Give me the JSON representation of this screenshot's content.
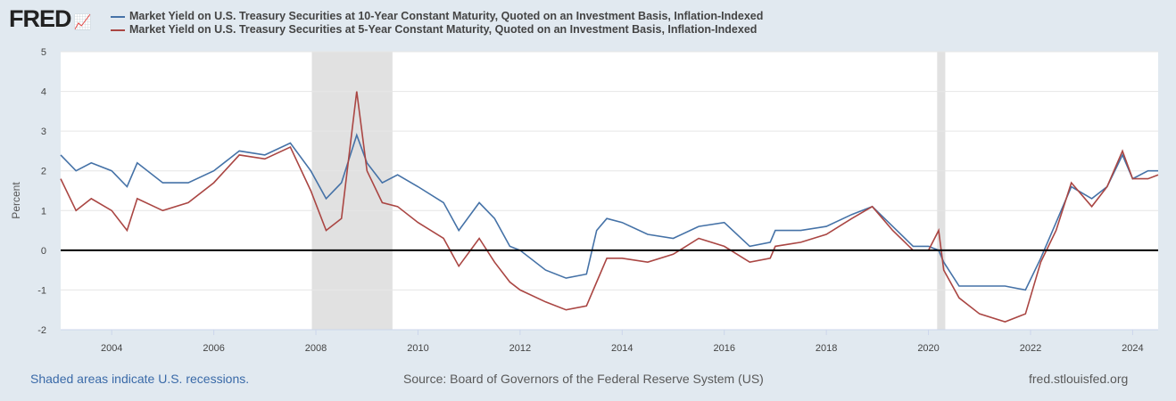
{
  "logo": "FRED",
  "footer": {
    "recession_note": "Shaded areas indicate U.S. recessions.",
    "source": "Source: Board of Governors of the Federal Reserve System (US)",
    "site": "fred.stlouisfed.org"
  },
  "chart_data": {
    "type": "line",
    "ylabel": "Percent",
    "ylim": [
      -2,
      5
    ],
    "xlim": [
      2003.0,
      2024.5
    ],
    "yticks": [
      "5",
      "4",
      "3",
      "2",
      "1",
      "0",
      "-1",
      "-2"
    ],
    "xticks": [
      "2004",
      "2006",
      "2008",
      "2010",
      "2012",
      "2014",
      "2016",
      "2018",
      "2020",
      "2022",
      "2024"
    ],
    "recessions": [
      [
        2007.92,
        2009.5
      ],
      [
        2020.17,
        2020.33
      ]
    ],
    "x": [
      2003.0,
      2003.3,
      2003.6,
      2004.0,
      2004.3,
      2004.5,
      2005.0,
      2005.5,
      2006.0,
      2006.5,
      2007.0,
      2007.5,
      2007.9,
      2008.2,
      2008.5,
      2008.8,
      2009.0,
      2009.3,
      2009.6,
      2010.0,
      2010.5,
      2010.8,
      2011.2,
      2011.5,
      2011.8,
      2012.0,
      2012.5,
      2012.9,
      2013.3,
      2013.5,
      2013.7,
      2014.0,
      2014.5,
      2015.0,
      2015.5,
      2016.0,
      2016.5,
      2016.9,
      2017.0,
      2017.5,
      2018.0,
      2018.5,
      2018.9,
      2019.3,
      2019.7,
      2020.0,
      2020.2,
      2020.3,
      2020.6,
      2021.0,
      2021.5,
      2021.9,
      2022.2,
      2022.5,
      2022.8,
      2023.2,
      2023.5,
      2023.8,
      2024.0,
      2024.3,
      2024.5
    ],
    "series": [
      {
        "name": "Market Yield on U.S. Treasury Securities at 10-Year Constant Maturity, Quoted on an Investment Basis, Inflation-Indexed",
        "color": "#4572a7",
        "values": [
          2.4,
          2.0,
          2.2,
          2.0,
          1.6,
          2.2,
          1.7,
          1.7,
          2.0,
          2.5,
          2.4,
          2.7,
          2.0,
          1.3,
          1.7,
          2.9,
          2.2,
          1.7,
          1.9,
          1.6,
          1.2,
          0.5,
          1.2,
          0.8,
          0.1,
          0.0,
          -0.5,
          -0.7,
          -0.6,
          0.5,
          0.8,
          0.7,
          0.4,
          0.3,
          0.6,
          0.7,
          0.1,
          0.2,
          0.5,
          0.5,
          0.6,
          0.9,
          1.1,
          0.6,
          0.1,
          0.1,
          0.0,
          -0.3,
          -0.9,
          -0.9,
          -0.9,
          -1.0,
          -0.2,
          0.7,
          1.6,
          1.3,
          1.6,
          2.4,
          1.8,
          2.0,
          2.0
        ]
      },
      {
        "name": "Market Yield on U.S. Treasury Securities at 5-Year Constant Maturity, Quoted on an Investment Basis, Inflation-Indexed",
        "color": "#aa4643",
        "values": [
          1.8,
          1.0,
          1.3,
          1.0,
          0.5,
          1.3,
          1.0,
          1.2,
          1.7,
          2.4,
          2.3,
          2.6,
          1.5,
          0.5,
          0.8,
          4.0,
          2.0,
          1.2,
          1.1,
          0.7,
          0.3,
          -0.4,
          0.3,
          -0.3,
          -0.8,
          -1.0,
          -1.3,
          -1.5,
          -1.4,
          -0.8,
          -0.2,
          -0.2,
          -0.3,
          -0.1,
          0.3,
          0.1,
          -0.3,
          -0.2,
          0.1,
          0.2,
          0.4,
          0.8,
          1.1,
          0.5,
          0.0,
          0.0,
          0.5,
          -0.5,
          -1.2,
          -1.6,
          -1.8,
          -1.6,
          -0.3,
          0.5,
          1.7,
          1.1,
          1.6,
          2.5,
          1.8,
          1.8,
          1.9
        ]
      }
    ]
  }
}
